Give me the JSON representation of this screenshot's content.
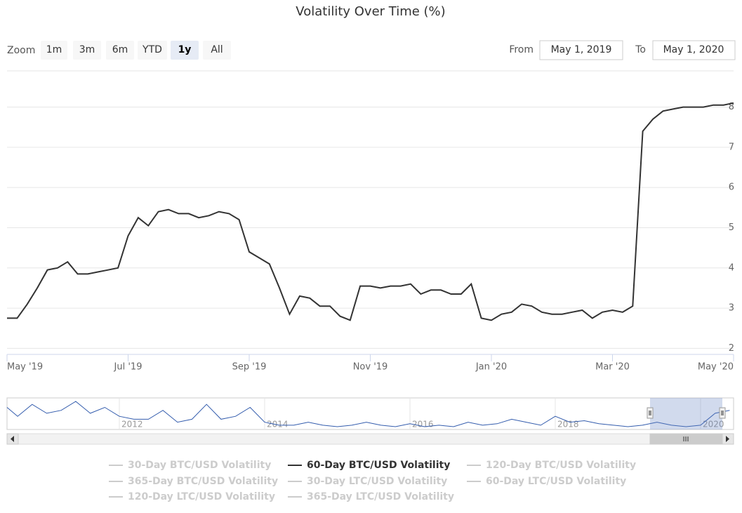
{
  "chart_data": {
    "type": "line",
    "title": "Volatility Over Time (%)",
    "range_selector": {
      "zoom_label": "Zoom",
      "buttons": [
        "1m",
        "3m",
        "6m",
        "YTD",
        "1y",
        "All"
      ],
      "selected": 4,
      "from_label": "From",
      "from": "May 1, 2019",
      "to_label": "To",
      "to": "May 1, 2020"
    },
    "categories": [
      "May '19",
      null,
      null,
      null,
      null,
      null,
      null,
      null,
      null,
      null,
      null,
      null,
      "Jul '19",
      null,
      null,
      null,
      null,
      null,
      null,
      null,
      null,
      null,
      null,
      null,
      "Sep '19",
      null,
      null,
      null,
      null,
      null,
      null,
      null,
      null,
      null,
      null,
      null,
      "Nov '19",
      null,
      null,
      null,
      null,
      null,
      null,
      null,
      null,
      null,
      null,
      null,
      "Jan '20",
      null,
      null,
      null,
      null,
      null,
      null,
      null,
      null,
      null,
      null,
      null,
      "Mar '20",
      null,
      null,
      null,
      null,
      null,
      null,
      null,
      null,
      null,
      null,
      null,
      "May '20"
    ],
    "ylim": [
      1.85,
      8.9
    ],
    "yticks": [
      2,
      3,
      4,
      5,
      6,
      7,
      8
    ],
    "grid": true,
    "series": [
      {
        "name": "30-Day BTC/USD Volatility",
        "color": "#cccccc",
        "visible": false
      },
      {
        "name": "60-Day BTC/USD Volatility",
        "color": "#333333",
        "visible": true,
        "values": [
          2.75,
          2.75,
          3.1,
          3.5,
          3.95,
          4.0,
          4.15,
          3.85,
          3.85,
          3.9,
          3.95,
          4.0,
          4.8,
          5.25,
          5.05,
          5.4,
          5.45,
          5.35,
          5.35,
          5.25,
          5.3,
          5.4,
          5.35,
          5.2,
          4.4,
          4.25,
          4.1,
          3.5,
          2.85,
          3.3,
          3.25,
          3.05,
          3.05,
          2.8,
          2.7,
          3.55,
          3.55,
          3.5,
          3.55,
          3.55,
          3.6,
          3.35,
          3.45,
          3.45,
          3.35,
          3.35,
          3.6,
          2.75,
          2.7,
          2.85,
          2.9,
          3.1,
          3.05,
          2.9,
          2.85,
          2.85,
          2.9,
          2.95,
          2.75,
          2.9,
          2.95,
          2.9,
          3.05,
          7.4,
          7.7,
          7.9,
          7.95,
          8.0,
          8.0,
          8.0,
          8.05,
          8.05,
          8.1
        ]
      },
      {
        "name": "120-Day BTC/USD Volatility",
        "color": "#cccccc",
        "visible": false
      },
      {
        "name": "365-Day BTC/USD Volatility",
        "color": "#cccccc",
        "visible": false
      },
      {
        "name": "30-Day LTC/USD Volatility",
        "color": "#cccccc",
        "visible": false
      },
      {
        "name": "60-Day LTC/USD Volatility",
        "color": "#cccccc",
        "visible": false
      },
      {
        "name": "120-Day LTC/USD Volatility",
        "color": "#cccccc",
        "visible": false
      },
      {
        "name": "365-Day LTC/USD Volatility",
        "color": "#cccccc",
        "visible": false
      }
    ],
    "navigator": {
      "color": "#335cad",
      "categories": [
        null,
        null,
        null,
        null,
        null,
        null,
        null,
        null,
        "2012",
        null,
        null,
        null,
        null,
        null,
        null,
        null,
        null,
        null,
        "2014",
        null,
        null,
        null,
        null,
        null,
        null,
        null,
        null,
        null,
        "2016",
        null,
        null,
        null,
        null,
        null,
        null,
        null,
        null,
        null,
        "2018",
        null,
        null,
        null,
        null,
        null,
        null,
        null,
        null,
        null,
        "2020",
        null,
        null
      ],
      "values": [
        9,
        6,
        10,
        7,
        8,
        11,
        7,
        9,
        6,
        5,
        5,
        8,
        4,
        5,
        10,
        5,
        6,
        9,
        4,
        3,
        3,
        4,
        3,
        2.5,
        3,
        4,
        3,
        2.5,
        3.5,
        2.5,
        3,
        2.5,
        4,
        3,
        3.5,
        5,
        4,
        3,
        6,
        4,
        4.5,
        3.5,
        3,
        2.5,
        3,
        4,
        3,
        2.5,
        3,
        7,
        8
      ]
    }
  }
}
